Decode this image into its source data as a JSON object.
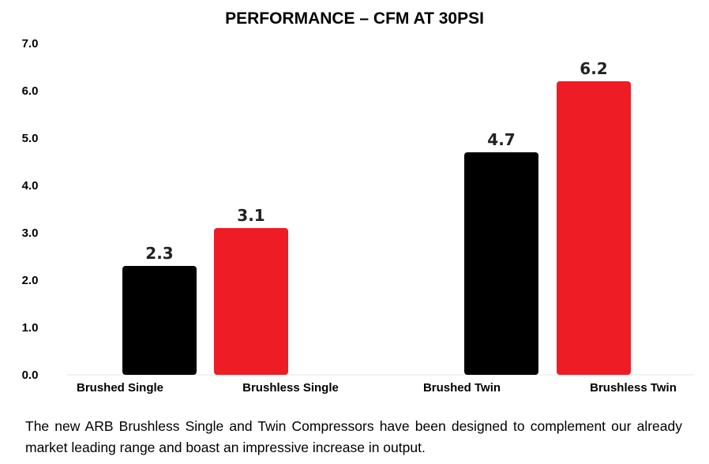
{
  "chart_data": {
    "type": "bar",
    "title": "PERFORMANCE – CFM AT 30PSI",
    "categories": [
      "Brushed Single",
      "Brushless Single",
      "Brushed Twin",
      "Brushless Twin"
    ],
    "values": [
      2.3,
      3.1,
      4.7,
      6.2
    ],
    "value_labels": [
      "2.3",
      "3.1",
      "4.7",
      "6.2"
    ],
    "bar_colors": [
      "#000000",
      "#ee1c25",
      "#000000",
      "#ee1c25"
    ],
    "ylim": [
      0,
      7
    ],
    "yticks": [
      "0.0",
      "1.0",
      "2.0",
      "3.0",
      "4.0",
      "5.0",
      "6.0",
      "7.0"
    ],
    "grid": false,
    "legend": "none"
  },
  "caption": "The new ARB Brushless Single and Twin Compressors have been designed to complement our already market leading range and boast an impressive increase in output."
}
